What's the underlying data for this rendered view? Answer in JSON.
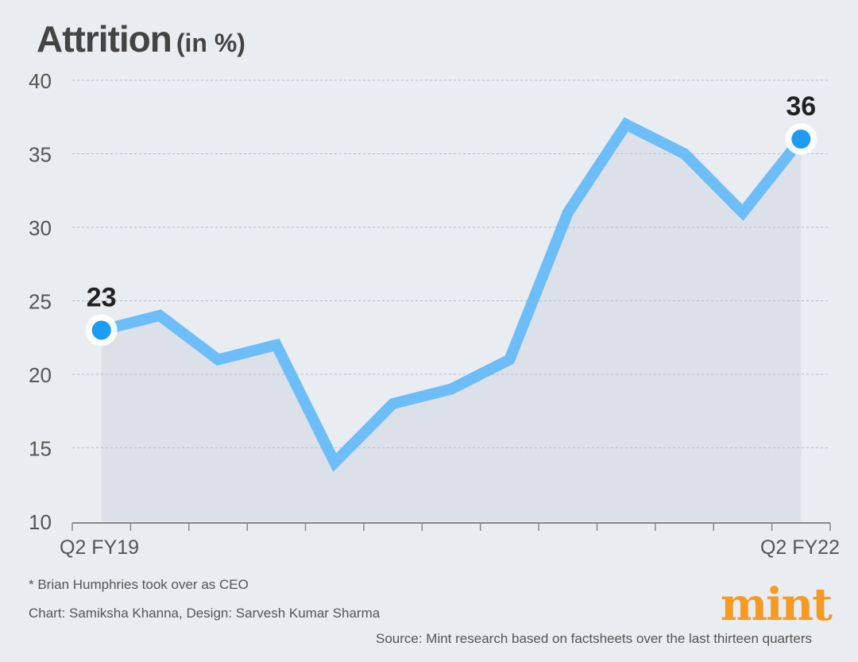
{
  "title": "Attrition",
  "title_unit": "(in %)",
  "chart_data": {
    "type": "area",
    "title": "Attrition (in %)",
    "x_labels": [
      "Q2 FY19",
      "",
      "",
      "",
      "",
      "",
      "",
      "",
      "",
      "",
      "",
      "",
      "Q2 FY22"
    ],
    "values": [
      23,
      24,
      21,
      22,
      14,
      18,
      19,
      21,
      31,
      37,
      35,
      31,
      36
    ],
    "ylim": [
      10,
      40
    ],
    "yticks": [
      10,
      15,
      20,
      25,
      30,
      35,
      40
    ],
    "grid": true,
    "data_labels": [
      {
        "index": 0,
        "text": "23"
      },
      {
        "index": 12,
        "text": "36"
      }
    ],
    "colors": {
      "line": "#6dbdf8",
      "marker": "#1c9cf2",
      "area": "#d9dee6",
      "grid": "#b9bec6"
    }
  },
  "footnotes": {
    "note": "* Brian Humphries took over as CEO",
    "credits": "Chart: Samiksha Khanna, Design: Sarvesh Kumar Sharma",
    "source": "Source: Mint research based on factsheets over the last thirteen quarters"
  },
  "logo": "mint"
}
